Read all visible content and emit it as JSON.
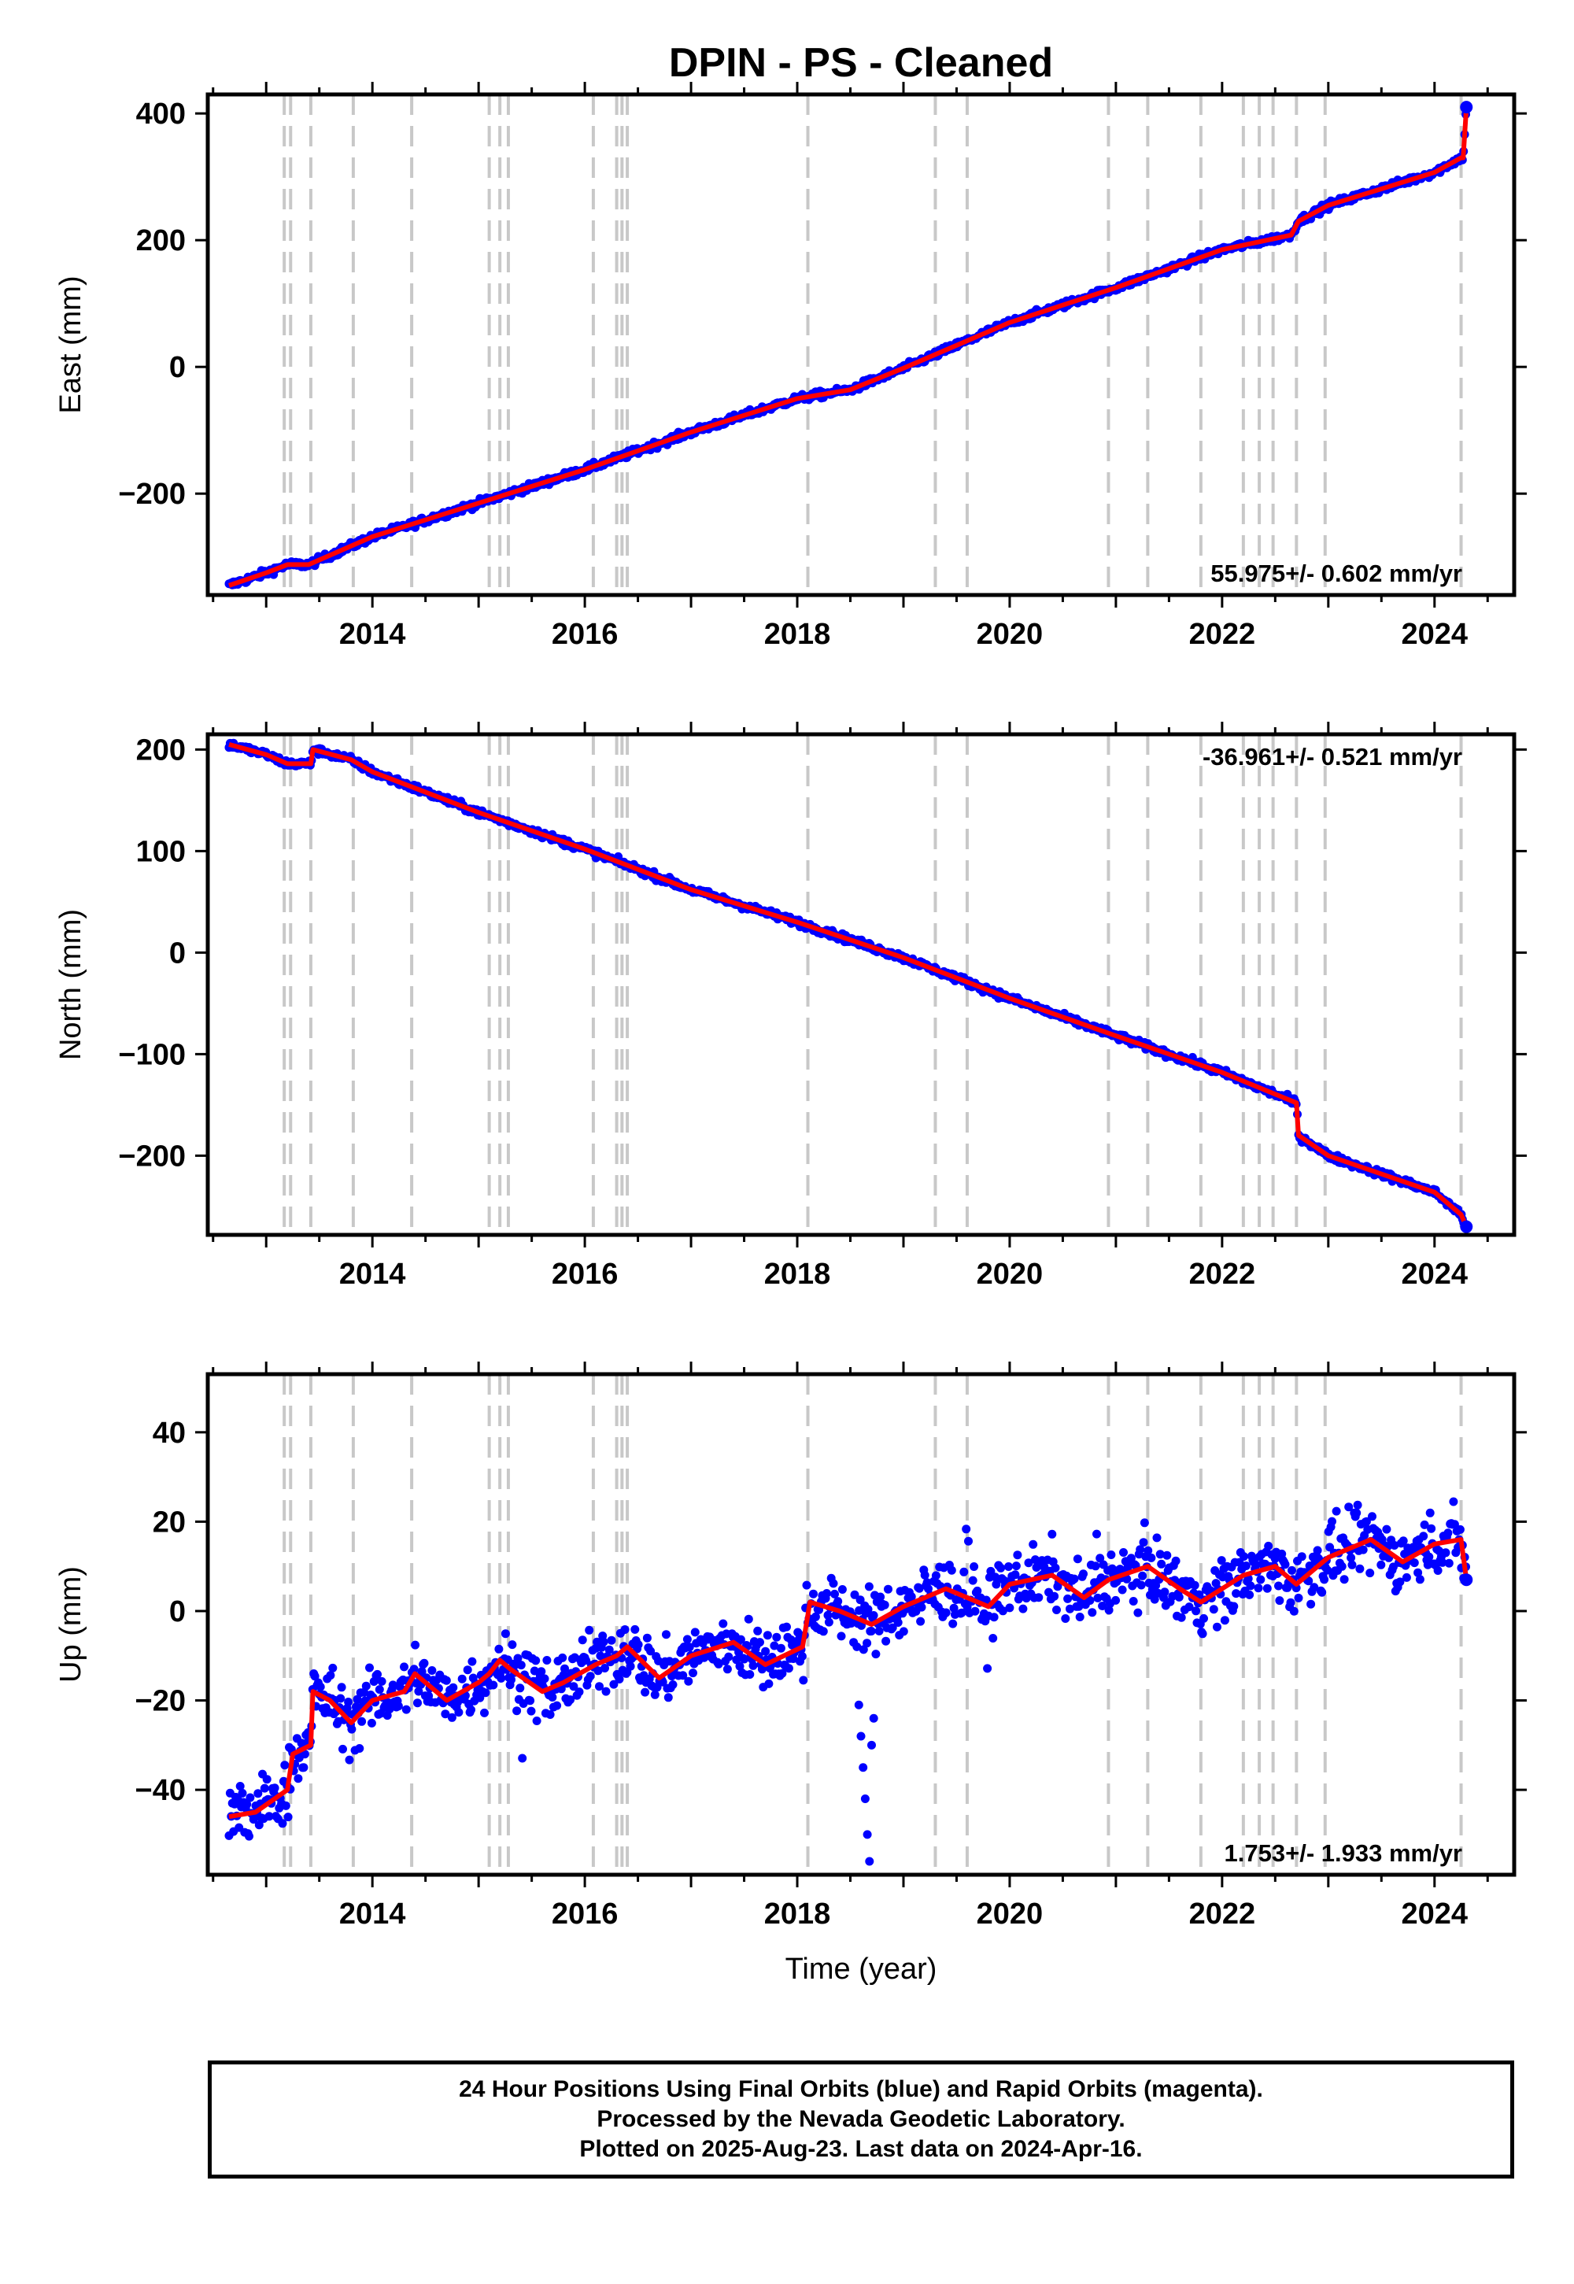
{
  "title": "DPIN  - PS - Cleaned",
  "xlabel": "Time (year)",
  "colors": {
    "final_orbits": "#0000ff",
    "model_fit": "#ff0000",
    "step_lines": "#c8c8c8",
    "frame": "#000000"
  },
  "footer": {
    "line1": "24 Hour Positions Using Final Orbits (blue) and Rapid Orbits (magenta).",
    "line2": "Processed by the Nevada Geodetic Laboratory.",
    "line3": "Plotted on 2025-Aug-23. Last data on 2024-Apr-16."
  },
  "chart_data": [
    {
      "type": "scatter",
      "component": "East",
      "ylabel": "East (mm)",
      "rate_text": "55.975+/- 0.602 mm/yr",
      "rate_position": "bottom-right",
      "xlim": [
        2012.45,
        2024.75
      ],
      "ylim": [
        -360,
        430
      ],
      "xticks": [
        2014,
        2016,
        2018,
        2020,
        2022,
        2024
      ],
      "yticks": [
        -200,
        0,
        200,
        400
      ],
      "step_lines": [
        2013.17,
        2013.23,
        2013.42,
        2013.82,
        2014.37,
        2015.1,
        2015.2,
        2015.28,
        2016.08,
        2016.3,
        2016.35,
        2016.4,
        2018.1,
        2019.3,
        2019.6,
        2020.93,
        2021.3,
        2021.8,
        2022.2,
        2022.35,
        2022.48,
        2022.7,
        2022.97,
        2024.25
      ],
      "scatter_noise": 4,
      "series": [
        {
          "label": "fit",
          "x": [
            2012.65,
            2013.0,
            2013.2,
            2013.4,
            2014.0,
            2015.0,
            2016.0,
            2017.0,
            2018.0,
            2018.5,
            2019.0,
            2020.0,
            2021.0,
            2022.0,
            2022.65,
            2022.72,
            2023.0,
            2024.0,
            2024.25,
            2024.27,
            2024.3
          ],
          "y": [
            -345,
            -325,
            -312,
            -312,
            -268,
            -215,
            -162,
            -103,
            -50,
            -36,
            -2,
            70,
            125,
            185,
            208,
            230,
            255,
            307,
            330,
            330,
            410
          ]
        }
      ]
    },
    {
      "type": "scatter",
      "component": "North",
      "ylabel": "North (mm)",
      "rate_text": "-36.961+/- 0.521 mm/yr",
      "rate_position": "top-right",
      "xlim": [
        2012.45,
        2024.75
      ],
      "ylim": [
        -278,
        215
      ],
      "xticks": [
        2014,
        2016,
        2018,
        2020,
        2022,
        2024
      ],
      "yticks": [
        -200,
        -100,
        0,
        100,
        200
      ],
      "step_lines": [
        2013.17,
        2013.23,
        2013.42,
        2013.82,
        2014.37,
        2015.1,
        2015.2,
        2015.28,
        2016.08,
        2016.3,
        2016.35,
        2016.4,
        2018.1,
        2019.3,
        2019.6,
        2020.93,
        2021.3,
        2021.8,
        2022.2,
        2022.35,
        2022.48,
        2022.7,
        2022.97,
        2024.25
      ],
      "scatter_noise": 2.5,
      "series": [
        {
          "label": "fit",
          "x": [
            2012.65,
            2013.0,
            2013.2,
            2013.42,
            2013.44,
            2013.8,
            2014.0,
            2015.0,
            2016.0,
            2017.0,
            2018.0,
            2019.0,
            2020.0,
            2021.0,
            2022.0,
            2022.7,
            2022.72,
            2023.0,
            2024.0,
            2024.25,
            2024.3
          ],
          "y": [
            205,
            195,
            186,
            186,
            200,
            190,
            178,
            138,
            102,
            62,
            30,
            -5,
            -45,
            -82,
            -118,
            -148,
            -180,
            -200,
            -236,
            -258,
            -270
          ]
        }
      ]
    },
    {
      "type": "scatter",
      "component": "Up",
      "ylabel": "Up (mm)",
      "rate_text": "1.753+/- 1.933 mm/yr",
      "rate_position": "bottom-right",
      "xlim": [
        2012.45,
        2024.75
      ],
      "ylim": [
        -59,
        53
      ],
      "xticks": [
        2014,
        2016,
        2018,
        2020,
        2022,
        2024
      ],
      "yticks": [
        -40,
        -20,
        0,
        20,
        40
      ],
      "step_lines": [
        2013.17,
        2013.23,
        2013.42,
        2013.82,
        2014.37,
        2015.1,
        2015.2,
        2015.28,
        2016.08,
        2016.3,
        2016.35,
        2016.4,
        2018.1,
        2019.3,
        2019.6,
        2020.93,
        2021.3,
        2021.8,
        2022.2,
        2022.35,
        2022.48,
        2022.7,
        2022.97,
        2024.25
      ],
      "scatter_noise": 5,
      "series": [
        {
          "label": "fit",
          "x": [
            2012.65,
            2012.9,
            2013.2,
            2013.25,
            2013.42,
            2013.44,
            2013.6,
            2013.8,
            2014.0,
            2014.3,
            2014.4,
            2014.7,
            2015.0,
            2015.1,
            2015.2,
            2015.3,
            2015.6,
            2015.8,
            2016.1,
            2016.3,
            2016.4,
            2016.7,
            2017.0,
            2017.4,
            2017.7,
            2018.05,
            2018.12,
            2018.4,
            2018.7,
            2019.0,
            2019.4,
            2019.8,
            2020.0,
            2020.4,
            2020.7,
            2020.93,
            2021.3,
            2021.6,
            2021.8,
            2022.2,
            2022.5,
            2022.7,
            2023.0,
            2023.4,
            2023.7,
            2024.0,
            2024.25,
            2024.3
          ],
          "y": [
            -46,
            -45,
            -40,
            -32,
            -30,
            -18,
            -20,
            -25,
            -20,
            -18,
            -14,
            -20,
            -16,
            -14,
            -11,
            -13,
            -18,
            -16,
            -12,
            -10,
            -8,
            -15,
            -10,
            -7,
            -12,
            -8,
            2,
            0,
            -3,
            1,
            5,
            1,
            6,
            8,
            3,
            7,
            10,
            5,
            2,
            8,
            10,
            6,
            12,
            16,
            11,
            15,
            16,
            7
          ]
        },
        {
          "label": "outliers",
          "x": [
            2018.6,
            2018.62,
            2018.64,
            2018.66,
            2018.68,
            2018.7,
            2018.72,
            2018.58
          ],
          "y": [
            -28,
            -35,
            -42,
            -50,
            -56,
            -30,
            -24,
            -21
          ]
        }
      ]
    }
  ]
}
